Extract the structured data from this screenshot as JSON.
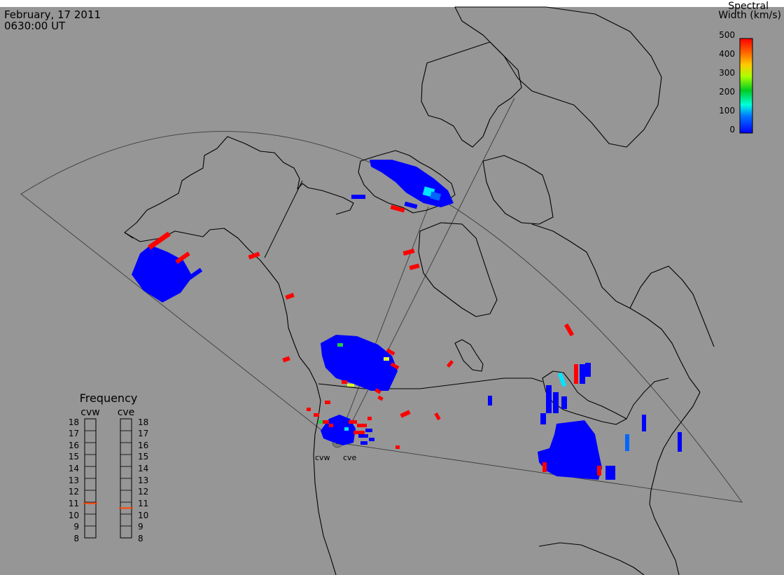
{
  "header": {
    "date": "February, 17 2011",
    "time": "0630:00 UT"
  },
  "colorbar": {
    "title_line1": "Spectral",
    "title_line2": "Width (km/s)",
    "ticks": [
      "500",
      "400",
      "300",
      "200",
      "100",
      "0"
    ],
    "range": [
      0,
      500
    ],
    "colors": [
      "#0000ff",
      "#00aaff",
      "#00ffcc",
      "#00cc00",
      "#ccff00",
      "#ffcc00",
      "#ff6600",
      "#ff0000"
    ]
  },
  "radars": {
    "west": "cvw",
    "east": "cve"
  },
  "frequency_panel": {
    "title": "Frequency",
    "left_label": "cvw",
    "right_label": "cve",
    "ticks": [
      "18",
      "17",
      "16",
      "15",
      "14",
      "13",
      "12",
      "11",
      "10",
      "9",
      "8"
    ],
    "cvw_value_mhz": 10.9,
    "cve_value_mhz": 10.5,
    "range_mhz": [
      8,
      18
    ],
    "marker_color": "#ff4500"
  },
  "colors": {
    "background": "#969696",
    "low_width": "#0000ff",
    "high_width": "#ff0000"
  }
}
